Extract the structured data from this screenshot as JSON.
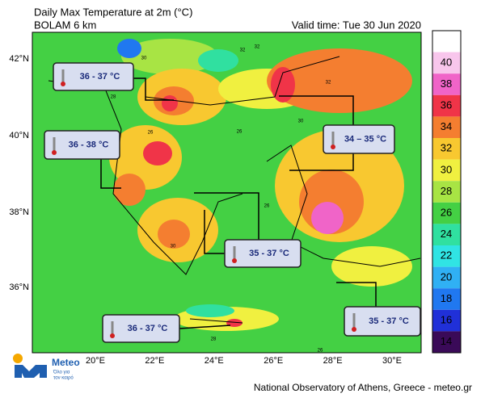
{
  "title": "Daily Max Temperature at 2m (°C)",
  "subtitle": "BOLAM 6 km",
  "valid_time": "Valid time: Tue 30 Jun 2020",
  "lat_labels": [
    "42°N",
    "40°N",
    "38°N",
    "36°N"
  ],
  "lon_labels": [
    "20°E",
    "22°E",
    "24°E",
    "26°E",
    "28°E",
    "30°E"
  ],
  "colorbar": {
    "labels": [
      "40",
      "38",
      "36",
      "34",
      "32",
      "30",
      "28",
      "26",
      "24",
      "22",
      "20",
      "18",
      "16",
      "14"
    ],
    "colors": [
      "#f8c6ec",
      "#f064c8",
      "#f03448",
      "#f47e30",
      "#f8c830",
      "#f0f040",
      "#a8e444",
      "#44d044",
      "#30e0a0",
      "#30e4e4",
      "#30b0f4",
      "#2078f0",
      "#2030d8",
      "#3a0a58"
    ],
    "top_color": "#ffffff"
  },
  "callouts": [
    "36 - 37 °C",
    "36 - 38 °C",
    "34 – 35 °C",
    "35 - 37 °C",
    "35 - 37 °C",
    "36 - 37 °C"
  ],
  "contour_labels": [
    "30",
    "32",
    "26",
    "32",
    "28",
    "26",
    "30",
    "26",
    "28",
    "26",
    "32",
    "30"
  ],
  "logo": {
    "name": "Meteo",
    "tagline_1": "Όλο για",
    "tagline_2": "τον καιρό"
  },
  "footer": "National Observatory of Athens, Greece - meteo.gr"
}
